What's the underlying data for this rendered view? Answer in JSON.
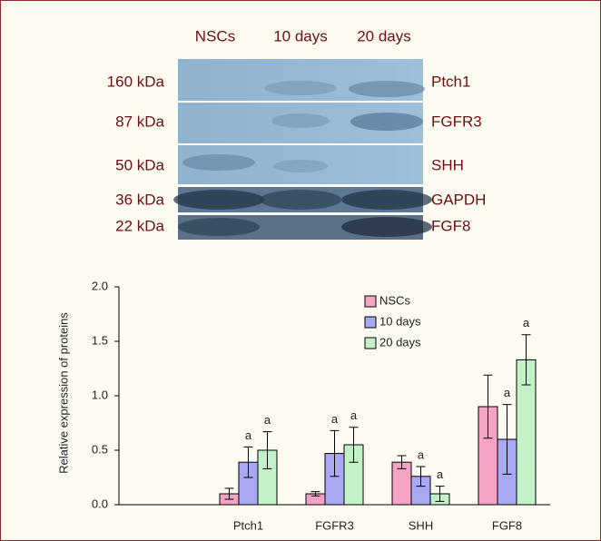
{
  "blot": {
    "columns": [
      "NSCs",
      "10 days",
      "20 days"
    ],
    "rows": [
      {
        "size": "160 kDa",
        "protein": "Ptch1"
      },
      {
        "size": "87 kDa",
        "protein": "FGFR3"
      },
      {
        "size": "50 kDa",
        "protein": "SHH"
      },
      {
        "size": "36 kDa",
        "protein": "GAPDH"
      },
      {
        "size": "22 kDa",
        "protein": "FGF8"
      }
    ]
  },
  "chart_data": {
    "type": "bar",
    "y_label": "Relative expression of proteins",
    "categories": [
      null,
      "Ptch1",
      "FGFR3",
      "SHH",
      "FGF8"
    ],
    "series": [
      {
        "name": "NSCs",
        "color": "#f4a3c4",
        "values": [
          null,
          0.1,
          0.1,
          0.39,
          0.9
        ],
        "errors": [
          null,
          0.05,
          0.02,
          0.06,
          0.29
        ],
        "annotations": [
          null,
          null,
          null,
          null,
          null
        ]
      },
      {
        "name": "10 days",
        "color": "#a9a9f2",
        "values": [
          null,
          0.39,
          0.47,
          0.26,
          0.6
        ],
        "errors": [
          null,
          0.14,
          0.21,
          0.09,
          0.32
        ],
        "annotations": [
          null,
          "a",
          "a",
          "a",
          "a"
        ]
      },
      {
        "name": "20 days",
        "color": "#c4f2c8",
        "values": [
          null,
          0.5,
          0.55,
          0.1,
          1.33
        ],
        "errors": [
          null,
          0.17,
          0.16,
          0.07,
          0.23
        ],
        "annotations": [
          null,
          "a",
          "a",
          "a",
          "a"
        ]
      }
    ],
    "ylim": [
      0,
      2
    ],
    "yticks": [
      {
        "value": 0,
        "label": "0.0"
      },
      {
        "value": 0.5,
        "label": "0.5"
      },
      {
        "value": 1,
        "label": "1.0"
      },
      {
        "value": 1.5,
        "label": "1.5"
      },
      {
        "value": 2,
        "label": "2.0"
      }
    ],
    "legend": "top-center"
  }
}
